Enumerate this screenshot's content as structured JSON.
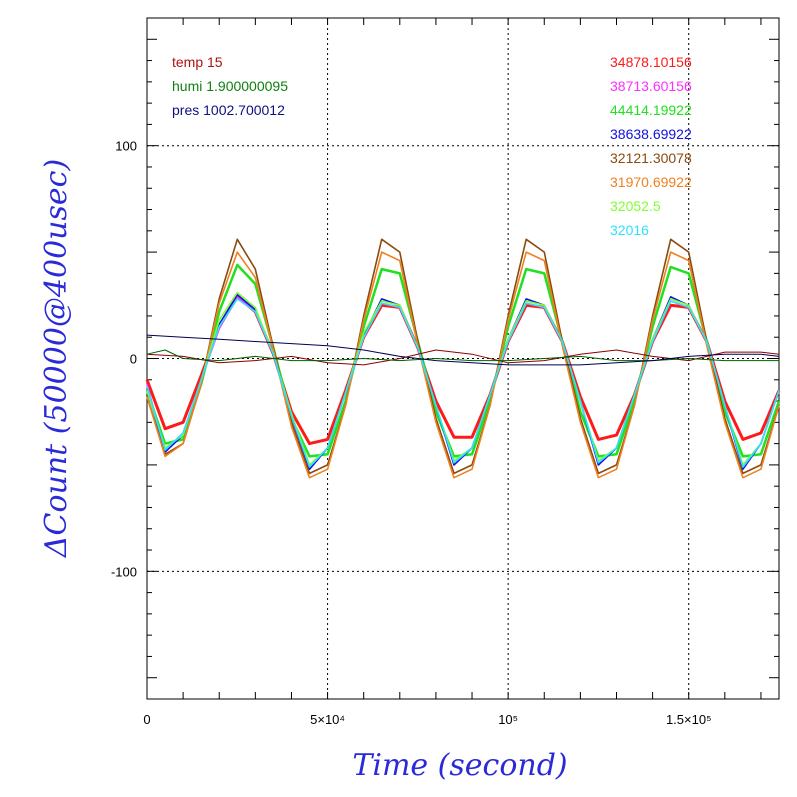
{
  "chart_data": {
    "type": "line",
    "xlabel": "Time (second)",
    "ylabel": "ΔCount (50000@400usec)",
    "xlim": [
      0,
      175000
    ],
    "ylim": [
      -160,
      160
    ],
    "grid": true,
    "x_ticks": [
      {
        "value": 0,
        "label": "0"
      },
      {
        "value": 50000,
        "label": "5×10⁴"
      },
      {
        "value": 100000,
        "label": "10⁵"
      },
      {
        "value": 150000,
        "label": "1.5×10⁵"
      }
    ],
    "y_ticks": [
      {
        "value": -100,
        "label": "-100"
      },
      {
        "value": 0,
        "label": "0"
      },
      {
        "value": 100,
        "label": "100"
      }
    ],
    "env_legend": [
      {
        "text": "temp 15",
        "color": "#b01010"
      },
      {
        "text": "humi 1.900000095",
        "color": "#108010"
      },
      {
        "text": "pres 1002.700012",
        "color": "#101080"
      }
    ],
    "series": [
      {
        "name": "34878.10156",
        "color": "#ff1a1a",
        "x": [
          0,
          5000,
          10000,
          15000,
          20000,
          25000,
          30000,
          35000,
          40000,
          45000,
          50000,
          55000,
          60000,
          65000,
          70000,
          75000,
          80000,
          85000,
          90000,
          95000,
          100000,
          105000,
          110000,
          115000,
          120000,
          125000,
          130000,
          135000,
          140000,
          145000,
          150000,
          155000,
          160000,
          165000,
          170000,
          175000
        ],
        "y": [
          -10,
          -33,
          -30,
          -8,
          15,
          29,
          22,
          2,
          -25,
          -40,
          -38,
          -15,
          10,
          25,
          24,
          5,
          -20,
          -37,
          -37,
          -17,
          8,
          25,
          24,
          8,
          -18,
          -38,
          -36,
          -17,
          8,
          25,
          24,
          8,
          -20,
          -38,
          -35,
          -15
        ]
      },
      {
        "name": "38713.60156",
        "color": "#ff30ff",
        "x": [
          0,
          5000,
          10000,
          15000,
          20000,
          25000,
          30000,
          35000,
          40000,
          45000,
          50000,
          55000,
          60000,
          65000,
          70000,
          75000,
          80000,
          85000,
          90000,
          95000,
          100000,
          105000,
          110000,
          115000,
          120000,
          125000,
          130000,
          135000,
          140000,
          145000,
          150000,
          155000,
          160000,
          165000,
          170000,
          175000
        ],
        "y": [
          -12,
          -44,
          -35,
          -10,
          14,
          29,
          22,
          2,
          -28,
          -52,
          -42,
          -16,
          10,
          26,
          24,
          5,
          -22,
          -50,
          -42,
          -17,
          8,
          26,
          24,
          8,
          -20,
          -50,
          -42,
          -17,
          8,
          27,
          24,
          8,
          -22,
          -52,
          -40,
          -15
        ]
      },
      {
        "name": "44414.19922",
        "color": "#20e020",
        "x": [
          0,
          5000,
          10000,
          15000,
          20000,
          25000,
          30000,
          35000,
          40000,
          45000,
          50000,
          55000,
          60000,
          65000,
          70000,
          75000,
          80000,
          85000,
          90000,
          95000,
          100000,
          105000,
          110000,
          115000,
          120000,
          125000,
          130000,
          135000,
          140000,
          145000,
          150000,
          155000,
          160000,
          165000,
          170000,
          175000
        ],
        "y": [
          -15,
          -40,
          -38,
          -12,
          22,
          44,
          35,
          5,
          -28,
          -46,
          -45,
          -20,
          15,
          42,
          40,
          8,
          -25,
          -46,
          -45,
          -20,
          15,
          42,
          40,
          8,
          -25,
          -46,
          -45,
          -20,
          15,
          43,
          40,
          8,
          -25,
          -46,
          -45,
          -20
        ]
      },
      {
        "name": "38638.69922",
        "color": "#1010e0",
        "x": [
          0,
          5000,
          10000,
          15000,
          20000,
          25000,
          30000,
          35000,
          40000,
          45000,
          50000,
          55000,
          60000,
          65000,
          70000,
          75000,
          80000,
          85000,
          90000,
          95000,
          100000,
          105000,
          110000,
          115000,
          120000,
          125000,
          130000,
          135000,
          140000,
          145000,
          150000,
          155000,
          160000,
          165000,
          170000,
          175000
        ],
        "y": [
          -14,
          -44,
          -36,
          -10,
          16,
          30,
          23,
          2,
          -27,
          -52,
          -42,
          -16,
          11,
          28,
          25,
          5,
          -22,
          -50,
          -42,
          -17,
          9,
          28,
          25,
          8,
          -20,
          -50,
          -42,
          -17,
          9,
          29,
          25,
          8,
          -22,
          -52,
          -40,
          -15
        ]
      },
      {
        "name": "32121.30078",
        "color": "#8a4a10",
        "x": [
          0,
          5000,
          10000,
          15000,
          20000,
          25000,
          30000,
          35000,
          40000,
          45000,
          50000,
          55000,
          60000,
          65000,
          70000,
          75000,
          80000,
          85000,
          90000,
          95000,
          100000,
          105000,
          110000,
          115000,
          120000,
          125000,
          130000,
          135000,
          140000,
          145000,
          150000,
          155000,
          160000,
          165000,
          170000,
          175000
        ],
        "y": [
          -18,
          -45,
          -40,
          -12,
          28,
          56,
          42,
          5,
          -30,
          -54,
          -50,
          -22,
          20,
          56,
          50,
          8,
          -28,
          -54,
          -50,
          -22,
          20,
          56,
          50,
          8,
          -28,
          -54,
          -50,
          -22,
          20,
          56,
          50,
          8,
          -28,
          -54,
          -50,
          -22
        ]
      },
      {
        "name": "31970.69922",
        "color": "#f08020",
        "x": [
          0,
          5000,
          10000,
          15000,
          20000,
          25000,
          30000,
          35000,
          40000,
          45000,
          50000,
          55000,
          60000,
          65000,
          70000,
          75000,
          80000,
          85000,
          90000,
          95000,
          100000,
          105000,
          110000,
          115000,
          120000,
          125000,
          130000,
          135000,
          140000,
          145000,
          150000,
          155000,
          160000,
          165000,
          170000,
          175000
        ],
        "y": [
          -18,
          -46,
          -40,
          -12,
          26,
          50,
          38,
          4,
          -32,
          -56,
          -52,
          -22,
          18,
          50,
          46,
          6,
          -30,
          -56,
          -52,
          -22,
          18,
          50,
          46,
          6,
          -30,
          -56,
          -52,
          -22,
          18,
          50,
          46,
          6,
          -30,
          -56,
          -52,
          -22
        ]
      },
      {
        "name": "32052.5",
        "color": "#80ff30",
        "x": [
          0,
          5000,
          10000,
          15000,
          20000,
          25000,
          30000,
          35000,
          40000,
          45000,
          50000,
          55000,
          60000,
          65000,
          70000,
          75000,
          80000,
          85000,
          90000,
          95000,
          100000,
          105000,
          110000,
          115000,
          120000,
          125000,
          130000,
          135000,
          140000,
          145000,
          150000,
          155000,
          160000,
          165000,
          170000,
          175000
        ],
        "y": [
          -15,
          -42,
          -36,
          -10,
          18,
          31,
          24,
          2,
          -26,
          -50,
          -42,
          -16,
          12,
          27,
          25,
          5,
          -22,
          -48,
          -42,
          -17,
          9,
          27,
          25,
          8,
          -20,
          -48,
          -42,
          -17,
          9,
          28,
          25,
          8,
          -22,
          -50,
          -40,
          -15
        ]
      },
      {
        "name": "32016",
        "color": "#30e0ff",
        "x": [
          0,
          5000,
          10000,
          15000,
          20000,
          25000,
          30000,
          35000,
          40000,
          45000,
          50000,
          55000,
          60000,
          65000,
          70000,
          75000,
          80000,
          85000,
          90000,
          95000,
          100000,
          105000,
          110000,
          115000,
          120000,
          125000,
          130000,
          135000,
          140000,
          145000,
          150000,
          155000,
          160000,
          165000,
          170000,
          175000
        ],
        "y": [
          -13,
          -43,
          -35,
          -10,
          15,
          28,
          22,
          2,
          -27,
          -51,
          -42,
          -16,
          10,
          26,
          24,
          5,
          -22,
          -49,
          -42,
          -17,
          8,
          26,
          24,
          8,
          -20,
          -49,
          -42,
          -17,
          8,
          27,
          24,
          8,
          -22,
          -51,
          -40,
          -15
        ]
      },
      {
        "name": "temp",
        "color": "#8a0000",
        "x": [
          0,
          10000,
          20000,
          30000,
          40000,
          50000,
          60000,
          70000,
          80000,
          90000,
          100000,
          110000,
          120000,
          130000,
          140000,
          150000,
          160000,
          170000,
          175000
        ],
        "y": [
          2,
          1,
          -2,
          -1,
          1,
          -2,
          -3,
          0,
          4,
          2,
          -2,
          -1,
          2,
          4,
          1,
          -1,
          3,
          3,
          2
        ]
      },
      {
        "name": "humi",
        "color": "#006000",
        "x": [
          0,
          5000,
          10000,
          20000,
          30000,
          40000,
          50000,
          60000,
          70000,
          80000,
          90000,
          100000,
          110000,
          120000,
          130000,
          140000,
          150000,
          160000,
          170000,
          175000
        ],
        "y": [
          2,
          4,
          0,
          -1,
          1,
          -1,
          -1,
          0,
          -1,
          0,
          -1,
          -1,
          0,
          1,
          -1,
          -1,
          0,
          -1,
          -1,
          -1
        ]
      },
      {
        "name": "pres",
        "color": "#000050",
        "x": [
          0,
          10000,
          20000,
          30000,
          40000,
          50000,
          60000,
          70000,
          80000,
          90000,
          100000,
          110000,
          120000,
          130000,
          140000,
          150000,
          160000,
          170000,
          175000
        ],
        "y": [
          11,
          10,
          9,
          8,
          7,
          6,
          4,
          1,
          -1,
          -2,
          -3,
          -3,
          -3,
          -2,
          -1,
          1,
          2,
          2,
          1
        ]
      }
    ]
  }
}
